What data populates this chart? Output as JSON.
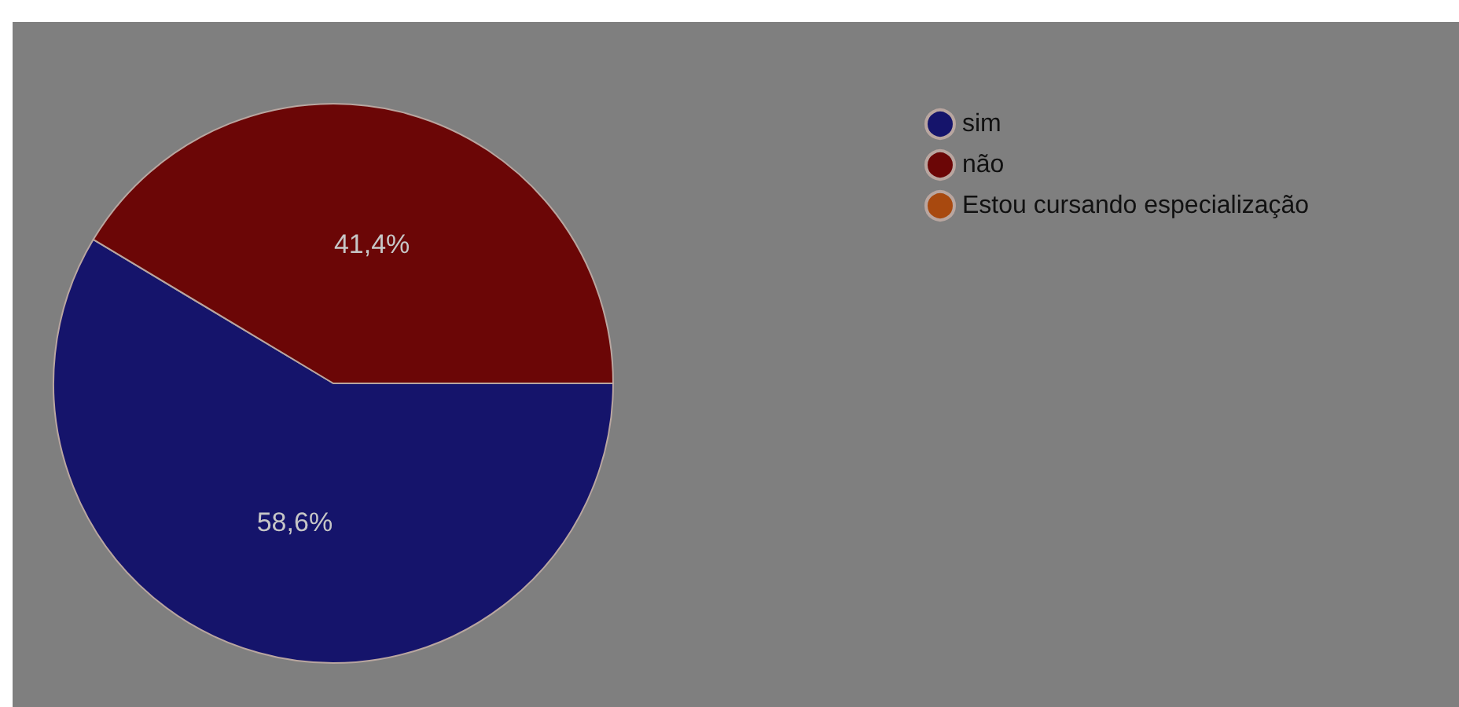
{
  "chart_data": {
    "type": "pie",
    "categories": [
      "sim",
      "não",
      "Estou cursando especialização"
    ],
    "values": [
      58.6,
      41.4,
      0
    ],
    "colors": [
      "#15146b",
      "#6b0606",
      "#a8490f"
    ],
    "value_labels": [
      "58,6%",
      "41,4%",
      null
    ],
    "legend": "top right"
  }
}
